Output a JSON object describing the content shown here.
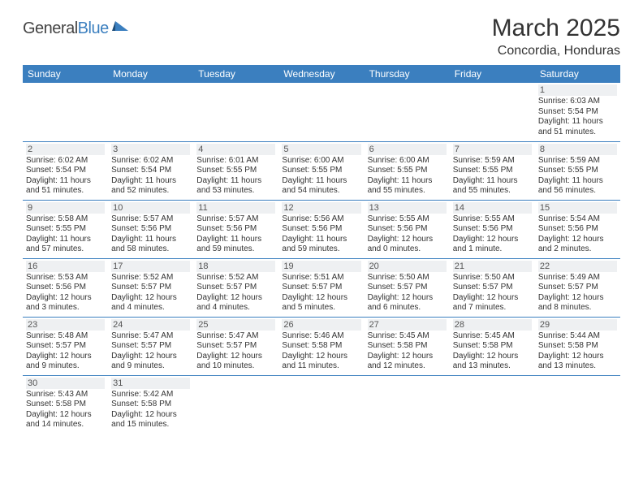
{
  "logo": {
    "word1": "General",
    "word2": "Blue"
  },
  "title": "March 2025",
  "location": "Concordia, Honduras",
  "colors": {
    "header_bg": "#3b7fbf",
    "header_text": "#ffffff",
    "border": "#3b7fbf",
    "daynum_bg": "#eef0f2",
    "text": "#333333",
    "background": "#ffffff"
  },
  "typography": {
    "title_fontsize": 30,
    "location_fontsize": 16,
    "dayhead_fontsize": 12,
    "daynum_fontsize": 11,
    "daytext_fontsize": 10,
    "font_family": "Arial"
  },
  "day_headers": [
    "Sunday",
    "Monday",
    "Tuesday",
    "Wednesday",
    "Thursday",
    "Friday",
    "Saturday"
  ],
  "weeks": [
    [
      {
        "num": "",
        "sunrise": "",
        "sunset": "",
        "daylight": ""
      },
      {
        "num": "",
        "sunrise": "",
        "sunset": "",
        "daylight": ""
      },
      {
        "num": "",
        "sunrise": "",
        "sunset": "",
        "daylight": ""
      },
      {
        "num": "",
        "sunrise": "",
        "sunset": "",
        "daylight": ""
      },
      {
        "num": "",
        "sunrise": "",
        "sunset": "",
        "daylight": ""
      },
      {
        "num": "",
        "sunrise": "",
        "sunset": "",
        "daylight": ""
      },
      {
        "num": "1",
        "sunrise": "Sunrise: 6:03 AM",
        "sunset": "Sunset: 5:54 PM",
        "daylight": "Daylight: 11 hours and 51 minutes."
      }
    ],
    [
      {
        "num": "2",
        "sunrise": "Sunrise: 6:02 AM",
        "sunset": "Sunset: 5:54 PM",
        "daylight": "Daylight: 11 hours and 51 minutes."
      },
      {
        "num": "3",
        "sunrise": "Sunrise: 6:02 AM",
        "sunset": "Sunset: 5:54 PM",
        "daylight": "Daylight: 11 hours and 52 minutes."
      },
      {
        "num": "4",
        "sunrise": "Sunrise: 6:01 AM",
        "sunset": "Sunset: 5:55 PM",
        "daylight": "Daylight: 11 hours and 53 minutes."
      },
      {
        "num": "5",
        "sunrise": "Sunrise: 6:00 AM",
        "sunset": "Sunset: 5:55 PM",
        "daylight": "Daylight: 11 hours and 54 minutes."
      },
      {
        "num": "6",
        "sunrise": "Sunrise: 6:00 AM",
        "sunset": "Sunset: 5:55 PM",
        "daylight": "Daylight: 11 hours and 55 minutes."
      },
      {
        "num": "7",
        "sunrise": "Sunrise: 5:59 AM",
        "sunset": "Sunset: 5:55 PM",
        "daylight": "Daylight: 11 hours and 55 minutes."
      },
      {
        "num": "8",
        "sunrise": "Sunrise: 5:59 AM",
        "sunset": "Sunset: 5:55 PM",
        "daylight": "Daylight: 11 hours and 56 minutes."
      }
    ],
    [
      {
        "num": "9",
        "sunrise": "Sunrise: 5:58 AM",
        "sunset": "Sunset: 5:55 PM",
        "daylight": "Daylight: 11 hours and 57 minutes."
      },
      {
        "num": "10",
        "sunrise": "Sunrise: 5:57 AM",
        "sunset": "Sunset: 5:56 PM",
        "daylight": "Daylight: 11 hours and 58 minutes."
      },
      {
        "num": "11",
        "sunrise": "Sunrise: 5:57 AM",
        "sunset": "Sunset: 5:56 PM",
        "daylight": "Daylight: 11 hours and 59 minutes."
      },
      {
        "num": "12",
        "sunrise": "Sunrise: 5:56 AM",
        "sunset": "Sunset: 5:56 PM",
        "daylight": "Daylight: 11 hours and 59 minutes."
      },
      {
        "num": "13",
        "sunrise": "Sunrise: 5:55 AM",
        "sunset": "Sunset: 5:56 PM",
        "daylight": "Daylight: 12 hours and 0 minutes."
      },
      {
        "num": "14",
        "sunrise": "Sunrise: 5:55 AM",
        "sunset": "Sunset: 5:56 PM",
        "daylight": "Daylight: 12 hours and 1 minute."
      },
      {
        "num": "15",
        "sunrise": "Sunrise: 5:54 AM",
        "sunset": "Sunset: 5:56 PM",
        "daylight": "Daylight: 12 hours and 2 minutes."
      }
    ],
    [
      {
        "num": "16",
        "sunrise": "Sunrise: 5:53 AM",
        "sunset": "Sunset: 5:56 PM",
        "daylight": "Daylight: 12 hours and 3 minutes."
      },
      {
        "num": "17",
        "sunrise": "Sunrise: 5:52 AM",
        "sunset": "Sunset: 5:57 PM",
        "daylight": "Daylight: 12 hours and 4 minutes."
      },
      {
        "num": "18",
        "sunrise": "Sunrise: 5:52 AM",
        "sunset": "Sunset: 5:57 PM",
        "daylight": "Daylight: 12 hours and 4 minutes."
      },
      {
        "num": "19",
        "sunrise": "Sunrise: 5:51 AM",
        "sunset": "Sunset: 5:57 PM",
        "daylight": "Daylight: 12 hours and 5 minutes."
      },
      {
        "num": "20",
        "sunrise": "Sunrise: 5:50 AM",
        "sunset": "Sunset: 5:57 PM",
        "daylight": "Daylight: 12 hours and 6 minutes."
      },
      {
        "num": "21",
        "sunrise": "Sunrise: 5:50 AM",
        "sunset": "Sunset: 5:57 PM",
        "daylight": "Daylight: 12 hours and 7 minutes."
      },
      {
        "num": "22",
        "sunrise": "Sunrise: 5:49 AM",
        "sunset": "Sunset: 5:57 PM",
        "daylight": "Daylight: 12 hours and 8 minutes."
      }
    ],
    [
      {
        "num": "23",
        "sunrise": "Sunrise: 5:48 AM",
        "sunset": "Sunset: 5:57 PM",
        "daylight": "Daylight: 12 hours and 9 minutes."
      },
      {
        "num": "24",
        "sunrise": "Sunrise: 5:47 AM",
        "sunset": "Sunset: 5:57 PM",
        "daylight": "Daylight: 12 hours and 9 minutes."
      },
      {
        "num": "25",
        "sunrise": "Sunrise: 5:47 AM",
        "sunset": "Sunset: 5:57 PM",
        "daylight": "Daylight: 12 hours and 10 minutes."
      },
      {
        "num": "26",
        "sunrise": "Sunrise: 5:46 AM",
        "sunset": "Sunset: 5:58 PM",
        "daylight": "Daylight: 12 hours and 11 minutes."
      },
      {
        "num": "27",
        "sunrise": "Sunrise: 5:45 AM",
        "sunset": "Sunset: 5:58 PM",
        "daylight": "Daylight: 12 hours and 12 minutes."
      },
      {
        "num": "28",
        "sunrise": "Sunrise: 5:45 AM",
        "sunset": "Sunset: 5:58 PM",
        "daylight": "Daylight: 12 hours and 13 minutes."
      },
      {
        "num": "29",
        "sunrise": "Sunrise: 5:44 AM",
        "sunset": "Sunset: 5:58 PM",
        "daylight": "Daylight: 12 hours and 13 minutes."
      }
    ],
    [
      {
        "num": "30",
        "sunrise": "Sunrise: 5:43 AM",
        "sunset": "Sunset: 5:58 PM",
        "daylight": "Daylight: 12 hours and 14 minutes."
      },
      {
        "num": "31",
        "sunrise": "Sunrise: 5:42 AM",
        "sunset": "Sunset: 5:58 PM",
        "daylight": "Daylight: 12 hours and 15 minutes."
      },
      {
        "num": "",
        "sunrise": "",
        "sunset": "",
        "daylight": ""
      },
      {
        "num": "",
        "sunrise": "",
        "sunset": "",
        "daylight": ""
      },
      {
        "num": "",
        "sunrise": "",
        "sunset": "",
        "daylight": ""
      },
      {
        "num": "",
        "sunrise": "",
        "sunset": "",
        "daylight": ""
      },
      {
        "num": "",
        "sunrise": "",
        "sunset": "",
        "daylight": ""
      }
    ]
  ]
}
